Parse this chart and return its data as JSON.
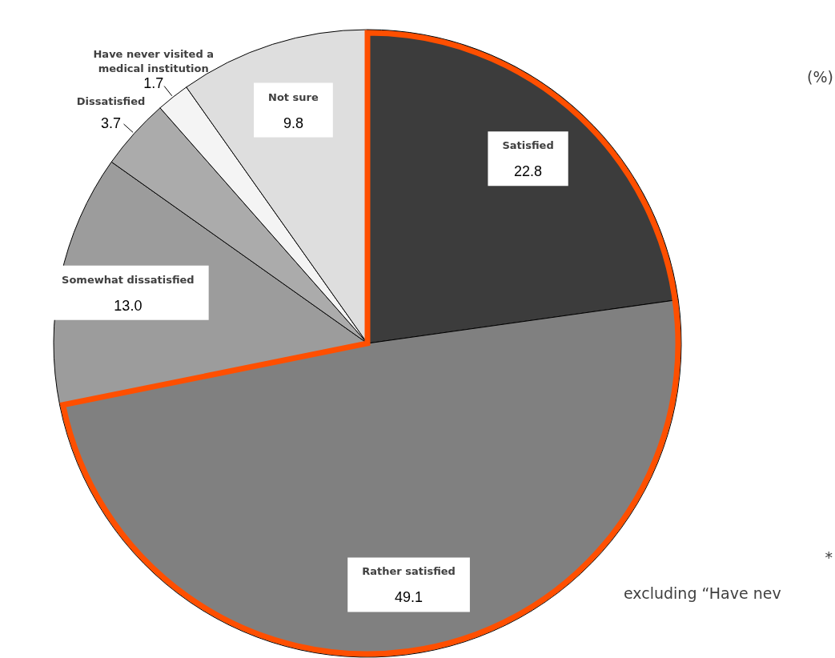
{
  "chart_data": {
    "type": "pie",
    "categories": [
      "Satisfied",
      "Rather satisfied",
      "Somewhat dissatisfied",
      "Dissatisfied",
      "Have never visited a medical institution",
      "Not sure"
    ],
    "values": [
      22.8,
      49.1,
      13.0,
      3.7,
      1.7,
      9.8
    ],
    "value_labels": [
      "22.8",
      "49.1",
      "13.0",
      "3.7",
      "1.7",
      "9.8"
    ],
    "colors": [
      "#3c3c3c",
      "#808080",
      "#9c9c9c",
      "#ababab",
      "#f4f4f4",
      "#dedede"
    ],
    "annotations": [
      "(%)",
      "*",
      "excluding “Have nev"
    ]
  }
}
